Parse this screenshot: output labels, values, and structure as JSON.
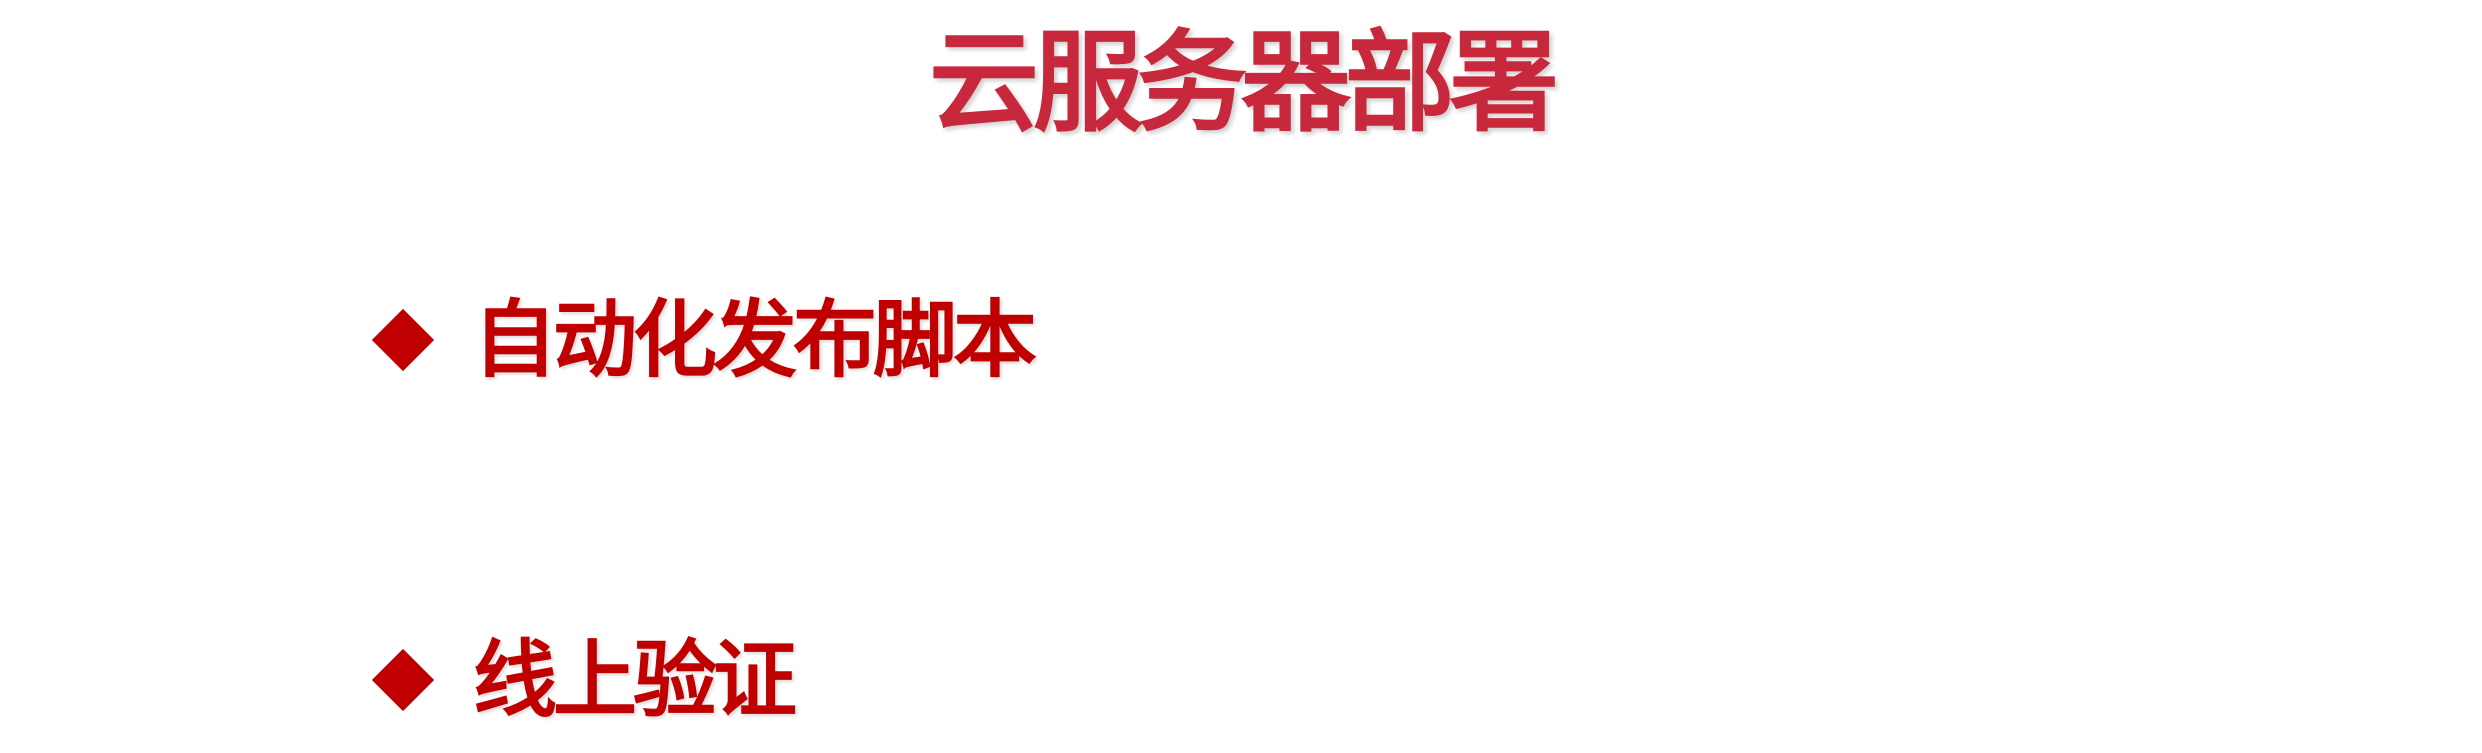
{
  "slide": {
    "title": "云服务器部署",
    "bullets": [
      {
        "text": "自动化发布脚本"
      },
      {
        "text": "线上验证"
      }
    ]
  },
  "colors": {
    "title": "#c8283c",
    "bullet": "#c00000",
    "background": "#ffffff"
  },
  "icons": {
    "bullet_marker": "diamond-bullet-icon"
  }
}
